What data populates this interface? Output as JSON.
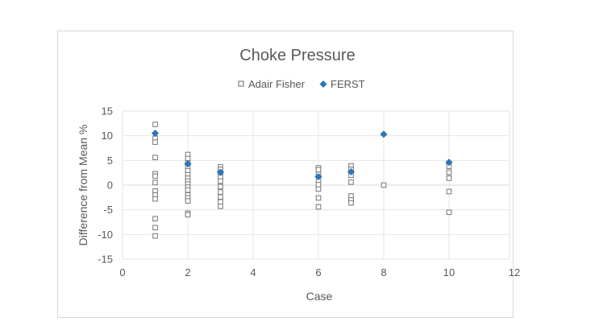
{
  "chart_data": {
    "type": "scatter",
    "title": "Choke Pressure",
    "xlabel": "Case",
    "ylabel": "Difference from Mean %",
    "xlim": [
      0,
      12
    ],
    "ylim": [
      -15,
      15
    ],
    "xticks": [
      "0",
      "2",
      "4",
      "6",
      "8",
      "10",
      "12"
    ],
    "yticks": [
      "15",
      "10",
      "5",
      "0",
      "-5",
      "-10",
      "-15"
    ],
    "grid": true,
    "legend_position": "top",
    "series": [
      {
        "name": "Adair Fisher",
        "marker": "hollow-square",
        "color": "#808080",
        "points": [
          [
            1,
            12.3
          ],
          [
            1,
            9.5
          ],
          [
            1,
            8.7
          ],
          [
            1,
            5.6
          ],
          [
            1,
            2.3
          ],
          [
            1,
            1.8
          ],
          [
            1,
            0.5
          ],
          [
            1,
            -1.2
          ],
          [
            1,
            -2.0
          ],
          [
            1,
            -2.8
          ],
          [
            1,
            -6.8
          ],
          [
            1,
            -8.6
          ],
          [
            1,
            -10.3
          ],
          [
            2,
            6.2
          ],
          [
            2,
            5.4
          ],
          [
            2,
            4.5
          ],
          [
            2,
            3.6
          ],
          [
            2,
            2.9
          ],
          [
            2,
            2.1
          ],
          [
            2,
            1.4
          ],
          [
            2,
            0.8
          ],
          [
            2,
            0.2
          ],
          [
            2,
            -0.4
          ],
          [
            2,
            -1.0
          ],
          [
            2,
            -2.0
          ],
          [
            2,
            -2.6
          ],
          [
            2,
            -3.2
          ],
          [
            2,
            -5.7
          ],
          [
            2,
            -6.0
          ],
          [
            3,
            3.7
          ],
          [
            3,
            3.2
          ],
          [
            3,
            2.5
          ],
          [
            3,
            1.6
          ],
          [
            3,
            0.8
          ],
          [
            3,
            -0.3
          ],
          [
            3,
            -1.4
          ],
          [
            3,
            -2.4
          ],
          [
            3,
            -3.4
          ],
          [
            3,
            -4.3
          ],
          [
            6,
            3.5
          ],
          [
            6,
            3.1
          ],
          [
            6,
            2.2
          ],
          [
            6,
            1.0
          ],
          [
            6,
            0.1
          ],
          [
            6,
            -0.8
          ],
          [
            6,
            -2.6
          ],
          [
            6,
            -4.4
          ],
          [
            7,
            3.9
          ],
          [
            7,
            3.2
          ],
          [
            7,
            2.0
          ],
          [
            7,
            0.6
          ],
          [
            7,
            -2.2
          ],
          [
            7,
            -3.0
          ],
          [
            7,
            -3.6
          ],
          [
            8,
            0.0
          ],
          [
            10,
            3.8
          ],
          [
            10,
            2.6
          ],
          [
            10,
            1.4
          ],
          [
            10,
            -1.3
          ],
          [
            10,
            -5.5
          ]
        ]
      },
      {
        "name": "FERST",
        "marker": "filled-diamond",
        "color": "#2e75b6",
        "points": [
          [
            1,
            10.5
          ],
          [
            2,
            4.3
          ],
          [
            3,
            2.6
          ],
          [
            6,
            1.7
          ],
          [
            7,
            2.7
          ],
          [
            8,
            10.3
          ],
          [
            10,
            4.6
          ]
        ]
      }
    ]
  }
}
